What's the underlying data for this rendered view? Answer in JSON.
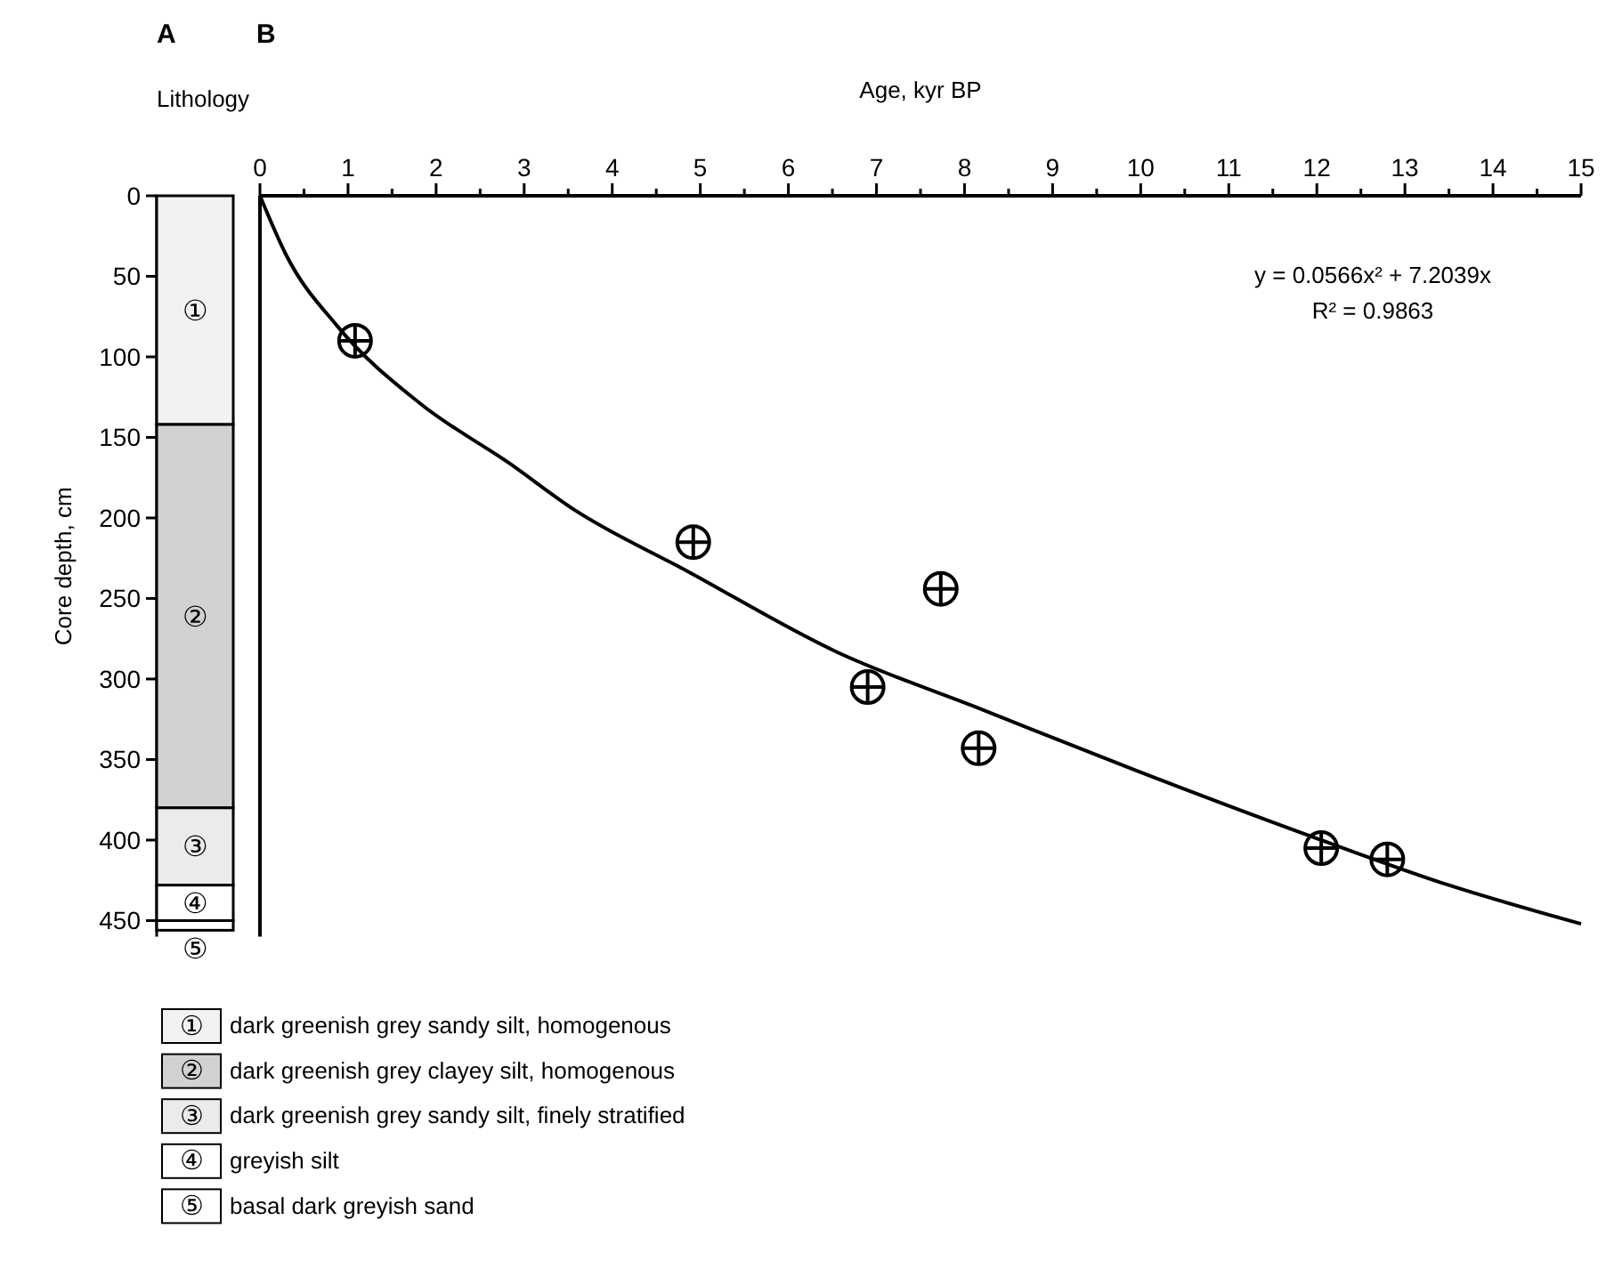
{
  "chart_data": [
    {
      "type": "bar",
      "stacked": true,
      "title": "A",
      "subtitle": "Lithology",
      "ylabel": "Core depth, cm",
      "categories": [
        null
      ],
      "ylim": [
        460,
        0
      ],
      "yticks": [
        0,
        50,
        100,
        150,
        200,
        250,
        300,
        350,
        400,
        450
      ],
      "tick_labels": "y",
      "legend": "bottom",
      "series": [
        {
          "name": "dark greenish grey sandy silt, homogenous",
          "color": "#f2f2f2",
          "values": [
            142
          ],
          "value_labels": [
            "①"
          ]
        },
        {
          "name": "dark greenish grey clayey silt, homogenous",
          "color": "#d2d2d2",
          "values": [
            238
          ],
          "value_labels": [
            "②"
          ]
        },
        {
          "name": "dark greenish grey sandy silt, finely stratified",
          "color": "#ebebeb",
          "values": [
            48
          ],
          "value_labels": [
            "③"
          ]
        },
        {
          "name": "greyish silt",
          "color": "#ffffff",
          "values": [
            22
          ],
          "value_labels": [
            "④"
          ]
        },
        {
          "name": "basal dark greyish sand",
          "color": "#ffffff",
          "values": [
            6
          ],
          "value_labels": [
            "⑤"
          ]
        }
      ]
    },
    {
      "type": "scatter",
      "title": "B",
      "xlabel": "Age, kyr BP",
      "xlim": [
        0,
        15
      ],
      "xticks": [
        0,
        {
          "value": 0.5,
          "label": null
        },
        1,
        {
          "value": 1.5,
          "label": null
        },
        2,
        {
          "value": 2.5,
          "label": null
        },
        3,
        {
          "value": 3.5,
          "label": null
        },
        4,
        {
          "value": 4.5,
          "label": null
        },
        5,
        {
          "value": 5.5,
          "label": null
        },
        6,
        {
          "value": 6.5,
          "label": null
        },
        7,
        {
          "value": 7.5,
          "label": null
        },
        8,
        {
          "value": 8.5,
          "label": null
        },
        9,
        {
          "value": 9.5,
          "label": null
        },
        10,
        {
          "value": 10.5,
          "label": null
        },
        11,
        {
          "value": 11.5,
          "label": null
        },
        12,
        {
          "value": 12.5,
          "label": null
        },
        13,
        {
          "value": 13.5,
          "label": null
        },
        14,
        {
          "value": 14.5,
          "label": null
        },
        15
      ],
      "ylim": [
        460,
        0
      ],
      "tick_labels": "x",
      "marker": "circle",
      "annotations": [
        "y = 0.0566x² + 7.2039x",
        "R² = 0.9863"
      ],
      "series": [
        {
          "color": "#000000",
          "x": [
            1.08,
            4.92,
            7.73,
            6.9,
            8.16,
            12.05,
            12.8
          ],
          "values": [
            90,
            215,
            244,
            305,
            343,
            405,
            412
          ]
        },
        {
          "type": "line",
          "color": "#000000",
          "line_style": "solid",
          "marker": "none",
          "x": [
            0,
            0.3,
            0.88,
            1.82,
            2.83,
            3.57,
            4.85,
            6.54,
            8.2,
            9.91,
            11.95,
            13.5,
            15
          ],
          "values": [
            0,
            37,
            81,
            129,
            166,
            195,
            233,
            283,
            319,
            356,
            398,
            428,
            452
          ]
        }
      ]
    }
  ]
}
